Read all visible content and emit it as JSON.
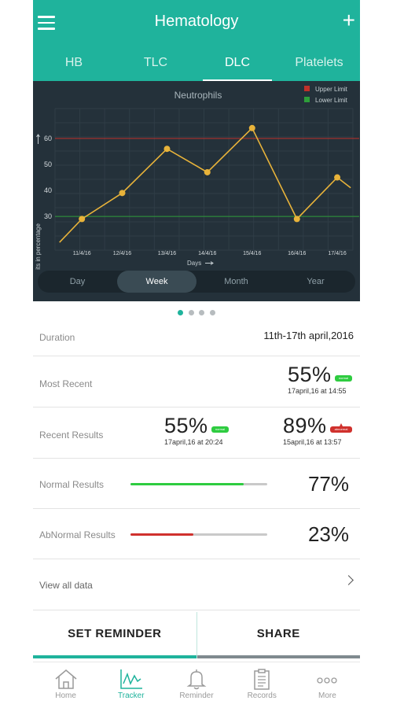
{
  "header": {
    "title": "Hematology",
    "tabs": [
      {
        "label": "HB",
        "active": false
      },
      {
        "label": "TLC",
        "active": false
      },
      {
        "label": "DLC",
        "active": true
      },
      {
        "label": "Platelets",
        "active": false
      }
    ]
  },
  "chart_data": {
    "type": "line",
    "title": "Neutrophils",
    "xlabel": "Days",
    "ylabel": "Units in percentage",
    "categories": [
      "11/4/16",
      "12/4/16",
      "13/4/16",
      "14/4/16",
      "15/4/16",
      "16/4/16",
      "17/4/16"
    ],
    "x_positions": [
      11.5,
      12.4,
      13.4,
      14.3,
      15.3,
      16.3,
      17.2
    ],
    "series": [
      {
        "values": [
          {
            "x": 11.0,
            "y": 20
          },
          {
            "x": 11.5,
            "y": 29
          },
          {
            "x": 12.4,
            "y": 39
          },
          {
            "x": 13.4,
            "y": 56
          },
          {
            "x": 14.3,
            "y": 47
          },
          {
            "x": 15.3,
            "y": 64
          },
          {
            "x": 16.3,
            "y": 29
          },
          {
            "x": 17.2,
            "y": 45
          },
          {
            "x": 17.5,
            "y": 41
          }
        ],
        "markers": [
          false,
          true,
          true,
          true,
          true,
          true,
          true,
          true,
          false
        ],
        "color": "#e8b33a"
      }
    ],
    "yticks": [
      30,
      40,
      50,
      60
    ],
    "ylim": [
      17,
      70
    ],
    "xlim": [
      10.9,
      17.55
    ],
    "limits": [
      {
        "name": "Upper Limit",
        "value": 60,
        "color": "#c0302a"
      },
      {
        "name": "Lower Limit",
        "value": 30,
        "color": "#2e9e3a"
      }
    ],
    "grid": true,
    "legend_position": "top-right"
  },
  "ranges": [
    {
      "label": "Day",
      "active": false
    },
    {
      "label": "Week",
      "active": true
    },
    {
      "label": "Month",
      "active": false
    },
    {
      "label": "Year",
      "active": false
    }
  ],
  "duration": {
    "label": "Duration",
    "value": "11th-17th april,2016"
  },
  "most_recent": {
    "label": "Most Recent",
    "value": "55%",
    "badge": "normal",
    "date": "17april,16 at 14:55"
  },
  "recent_results": {
    "label": "Recent Results",
    "items": [
      {
        "value": "55%",
        "badge": "normal",
        "date": "17april,16 at 20:24"
      },
      {
        "value": "89%",
        "badge": "abnormal",
        "date": "15april,16 at 13:57"
      }
    ]
  },
  "normal_results": {
    "label": "Normal Results",
    "value": "77%",
    "fill": 0.83,
    "color": "#2ecc40"
  },
  "abnormal_results": {
    "label": "AbNormal Results",
    "value": "23%",
    "fill": 0.46,
    "color": "#d0312d"
  },
  "view_all": {
    "label": "View all data"
  },
  "actions": {
    "reminder": "SET REMINDER",
    "share": "SHARE"
  },
  "nav": [
    {
      "label": "Home",
      "icon": "home-icon",
      "active": false
    },
    {
      "label": "Tracker",
      "icon": "tracker-icon",
      "active": true
    },
    {
      "label": "Reminder",
      "icon": "bell-icon",
      "active": false
    },
    {
      "label": "Records",
      "icon": "clipboard-icon",
      "active": false
    },
    {
      "label": "More",
      "icon": "more-icon",
      "active": false
    }
  ],
  "colors": {
    "accent": "#1fb39c",
    "chart_bg": "#24313a",
    "line": "#e8b33a"
  }
}
